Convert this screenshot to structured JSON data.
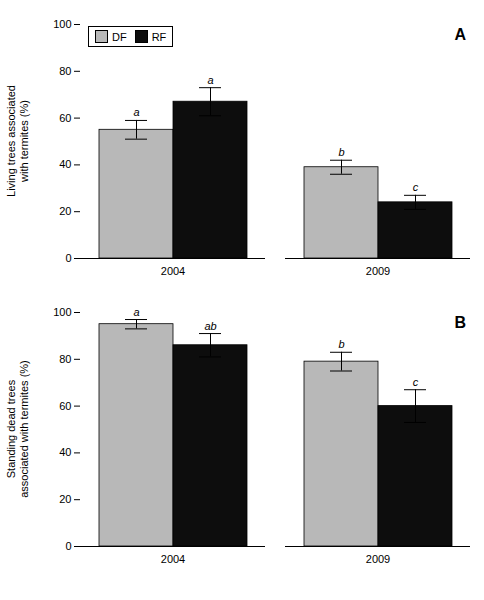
{
  "chart_data": [
    {
      "type": "bar",
      "ylabel": "Living trees associated\nwith termites (%)",
      "annotations": [
        "A"
      ],
      "categories": [
        "2004",
        "2009"
      ],
      "series": [
        {
          "name": "DF",
          "color": "#b8b8b8",
          "values": [
            55,
            39
          ],
          "errors": [
            4,
            3
          ],
          "annotations": [
            "a",
            "b"
          ]
        },
        {
          "name": "RF",
          "color": "#0d0d0d",
          "values": [
            67,
            24
          ],
          "errors": [
            6,
            3
          ],
          "annotations": [
            "a",
            "c"
          ]
        }
      ],
      "ylim": [
        0,
        100
      ],
      "yticks": [
        0,
        20,
        40,
        60,
        80,
        100
      ],
      "legend": "upper left"
    },
    {
      "type": "bar",
      "ylabel": "Standing dead trees\nassociated with termites (%)",
      "annotations": [
        "B"
      ],
      "categories": [
        "2004",
        "2009"
      ],
      "series": [
        {
          "name": "DF",
          "color": "#b8b8b8",
          "values": [
            95,
            79
          ],
          "errors": [
            2,
            4
          ],
          "annotations": [
            "a",
            "b"
          ]
        },
        {
          "name": "RF",
          "color": "#0d0d0d",
          "values": [
            86,
            60
          ],
          "errors": [
            5,
            7
          ],
          "annotations": [
            "ab",
            "c"
          ]
        }
      ],
      "ylim": [
        0,
        100
      ],
      "yticks": [
        0,
        20,
        40,
        60,
        80,
        100
      ]
    }
  ]
}
